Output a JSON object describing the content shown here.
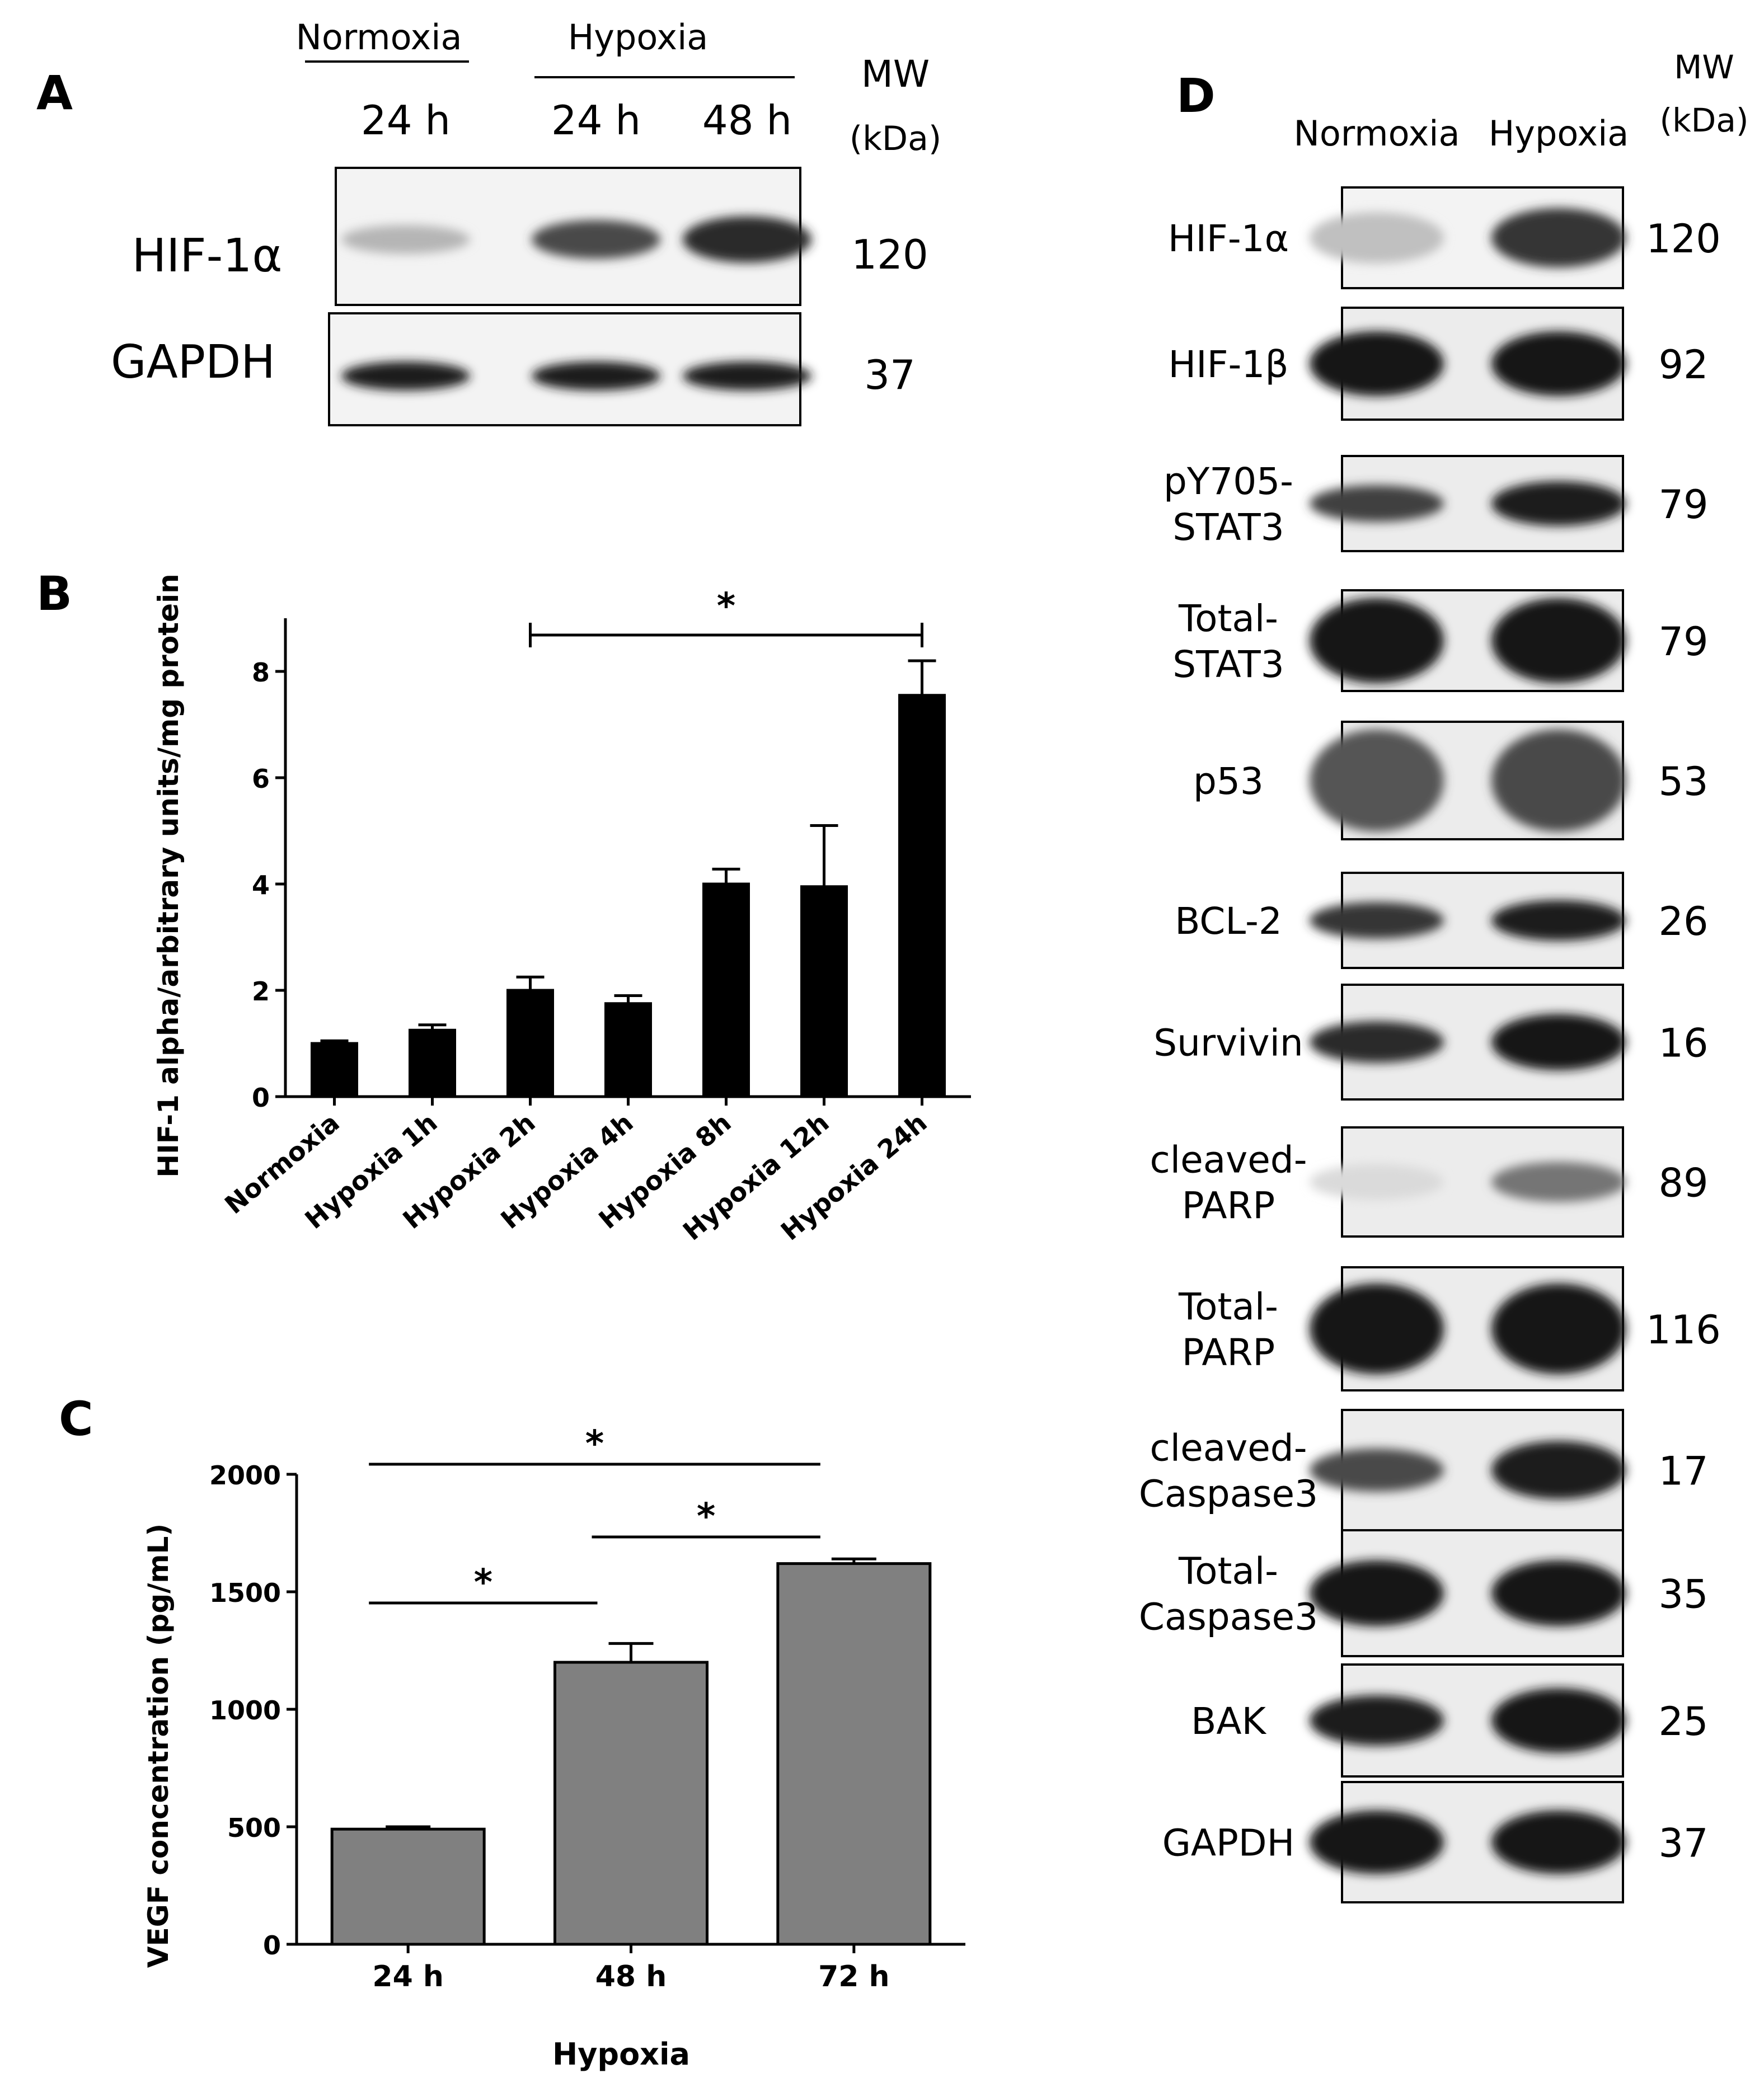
{
  "panel_a": {
    "letter": "A",
    "group_normoxia": "Normoxia",
    "group_hypoxia": "Hypoxia",
    "lanes": [
      "24 h",
      "24 h",
      "48 h"
    ],
    "mw_title_1": "MW",
    "mw_title_2": "(kDa)",
    "rows": [
      {
        "label": "HIF-1α",
        "mw": "120",
        "intensity": [
          0.25,
          0.75,
          0.9
        ],
        "thickness": [
          0.35,
          0.55,
          0.7
        ]
      },
      {
        "label": "GAPDH",
        "mw": "37",
        "intensity": [
          0.95,
          0.95,
          0.95
        ],
        "thickness": [
          0.35,
          0.35,
          0.35
        ]
      }
    ]
  },
  "panel_b": {
    "letter": "B",
    "chart_data": {
      "type": "bar",
      "categories": [
        "Normoxia",
        "Hypoxia 1h",
        "Hypoxia 2h",
        "Hypoxia 4h",
        "Hypoxia 8h",
        "Hypoxia 12h",
        "Hypoxia 24h"
      ],
      "values": [
        1.0,
        1.25,
        2.0,
        1.75,
        4.0,
        3.95,
        7.55
      ],
      "errors": [
        0.05,
        0.1,
        0.25,
        0.15,
        0.28,
        1.15,
        0.65
      ],
      "ylabel": "HIF-1 alpha/arbitrary units/mg protein",
      "xlabel": "",
      "ylim": [
        0,
        9
      ],
      "yticks": [
        0,
        2,
        4,
        6,
        8
      ],
      "bar_color": "#000000",
      "significance": [
        {
          "from": "Hypoxia 2h",
          "to": "Hypoxia 24h",
          "label": "*"
        }
      ]
    }
  },
  "panel_c": {
    "letter": "C",
    "chart_data": {
      "type": "bar",
      "categories": [
        "24 h",
        "48 h",
        "72 h"
      ],
      "values": [
        490,
        1200,
        1620
      ],
      "errors": [
        10,
        80,
        20
      ],
      "ylabel": "VEGF concentration (pg/mL)",
      "xlabel": "Hypoxia",
      "ylim": [
        0,
        2000
      ],
      "yticks": [
        0,
        500,
        1000,
        1500,
        2000
      ],
      "bar_color": "#808080",
      "significance": [
        {
          "from": "24 h",
          "to": "72 h",
          "label": "*"
        },
        {
          "from": "48 h",
          "to": "72 h",
          "label": "*"
        },
        {
          "from": "24 h",
          "to": "48 h",
          "label": "*"
        }
      ]
    }
  },
  "panel_d": {
    "letter": "D",
    "lanes": [
      "Normoxia",
      "Hypoxia"
    ],
    "mw_title_1": "MW",
    "mw_title_2": "(kDa)",
    "rows": [
      {
        "label": [
          "HIF-1α"
        ],
        "mw": "120",
        "intensity": [
          0.2,
          0.85
        ],
        "thickness": [
          0.45,
          0.55
        ]
      },
      {
        "label": [
          "HIF-1β"
        ],
        "mw": "92",
        "intensity": [
          1.0,
          1.0
        ],
        "thickness": [
          0.55,
          0.55
        ]
      },
      {
        "label": [
          "pY705-",
          "STAT3"
        ],
        "mw": "79",
        "intensity": [
          0.8,
          0.95
        ],
        "thickness": [
          0.3,
          0.4
        ]
      },
      {
        "label": [
          "Total-",
          "STAT3"
        ],
        "mw": "79",
        "intensity": [
          1.0,
          1.0
        ],
        "thickness": [
          0.85,
          0.85
        ]
      },
      {
        "label": [
          "p53"
        ],
        "mw": "53",
        "intensity": [
          0.7,
          0.75
        ],
        "thickness": [
          0.9,
          0.9
        ]
      },
      {
        "label": [
          "BCL-2"
        ],
        "mw": "26",
        "intensity": [
          0.85,
          0.95
        ],
        "thickness": [
          0.3,
          0.35
        ]
      },
      {
        "label": [
          "Survivin"
        ],
        "mw": "16",
        "intensity": [
          0.9,
          1.0
        ],
        "thickness": [
          0.3,
          0.45
        ]
      },
      {
        "label": [
          "cleaved-",
          "PARP"
        ],
        "mw": "89",
        "intensity": [
          0.08,
          0.55
        ],
        "thickness": [
          0.25,
          0.3
        ]
      },
      {
        "label": [
          "Total-",
          "PARP"
        ],
        "mw": "116",
        "intensity": [
          1.0,
          1.0
        ],
        "thickness": [
          0.75,
          0.75
        ]
      },
      {
        "label": [
          "cleaved-",
          "Caspase3"
        ],
        "mw": "17",
        "intensity": [
          0.75,
          0.95
        ],
        "thickness": [
          0.3,
          0.45
        ]
      },
      {
        "label": [
          "Total-",
          "Caspase3"
        ],
        "mw": "35",
        "intensity": [
          1.0,
          1.0
        ],
        "thickness": [
          0.5,
          0.5
        ]
      },
      {
        "label": [
          "BAK"
        ],
        "mw": "25",
        "intensity": [
          0.95,
          1.0
        ],
        "thickness": [
          0.4,
          0.55
        ]
      },
      {
        "label": [
          "GAPDH"
        ],
        "mw": "37",
        "intensity": [
          1.0,
          1.0
        ],
        "thickness": [
          0.5,
          0.5
        ]
      }
    ]
  }
}
